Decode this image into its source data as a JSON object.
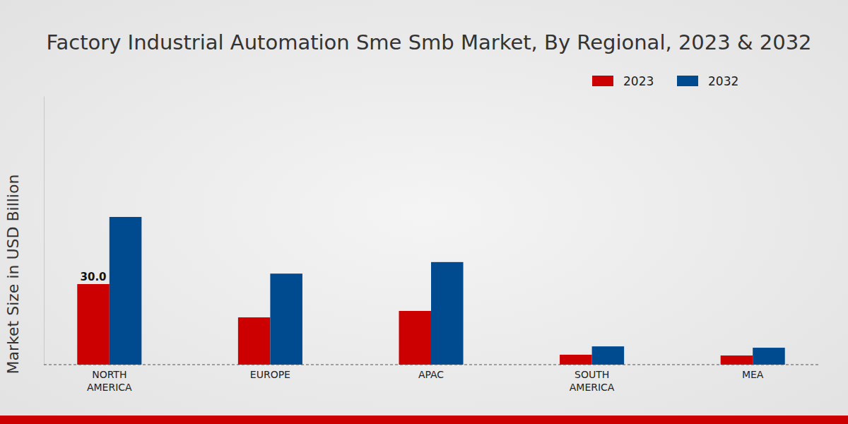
{
  "chart_data": {
    "type": "bar",
    "title": "Factory Industrial Automation Sme Smb Market, By Regional, 2023 & 2032",
    "y_label": "Market Size in USD Billion",
    "categories": [
      "NORTH AMERICA",
      "EUROPE",
      "APAC",
      "SOUTH AMERICA",
      "MEA"
    ],
    "series": [
      {
        "name": "2023",
        "color": "#cc0000",
        "values": [
          30.0,
          17.6,
          20.0,
          3.7,
          3.4
        ],
        "value_labels": [
          "30.0",
          null,
          null,
          null,
          null
        ]
      },
      {
        "name": "2032",
        "color": "#004a8f",
        "values": [
          55.0,
          33.9,
          38.2,
          6.8,
          6.3
        ]
      }
    ],
    "ylim": [
      0,
      100
    ],
    "tick_labels": "x",
    "legend": "top-right",
    "grid": false
  }
}
